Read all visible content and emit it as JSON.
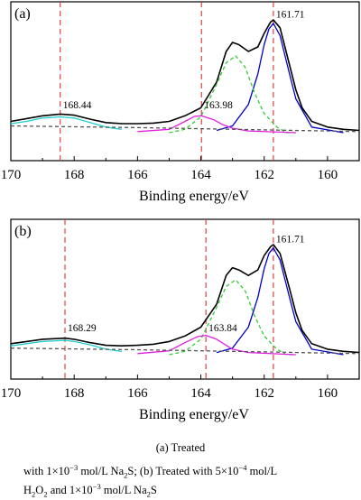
{
  "chart_data": [
    {
      "type": "line",
      "panel_label": "(a)",
      "xlabel": "Binding energy/eV",
      "xlim": [
        170,
        159
      ],
      "xticks": [
        170,
        168,
        166,
        164,
        162,
        160
      ],
      "axis_direction": "reversed",
      "grid": false,
      "reference_lines": [
        168.44,
        163.98,
        161.71
      ],
      "annotations": [
        {
          "text": "168.44",
          "x": 168.44,
          "y": 0.215
        },
        {
          "text": "163.98",
          "x": 163.98,
          "y": 0.215
        },
        {
          "text": "161.71",
          "x": 161.71,
          "y": 1.02
        }
      ],
      "series": [
        {
          "color": "#000000",
          "style": "solid",
          "x": [
            170,
            169.5,
            169,
            168.44,
            168,
            167.5,
            167,
            166.5,
            166,
            165.5,
            165,
            164.5,
            164,
            163.5,
            163.2,
            163,
            162.8,
            162.5,
            162.2,
            162,
            161.8,
            161.71,
            161.5,
            161.2,
            161,
            160.8,
            160.5,
            160,
            159.5,
            159
          ],
          "y": [
            0.1,
            0.125,
            0.15,
            0.165,
            0.155,
            0.12,
            0.09,
            0.08,
            0.08,
            0.085,
            0.1,
            0.15,
            0.22,
            0.45,
            0.72,
            0.8,
            0.78,
            0.72,
            0.76,
            0.88,
            0.98,
            1.0,
            0.93,
            0.6,
            0.38,
            0.22,
            0.1,
            0.05,
            0.03,
            0.02
          ]
        },
        {
          "color": "#0000cc",
          "style": "solid",
          "x": [
            163.5,
            163,
            162.5,
            162.2,
            162,
            161.85,
            161.71,
            161.5,
            161.2,
            161,
            160.5,
            159.5
          ],
          "y": [
            0.02,
            0.06,
            0.25,
            0.52,
            0.78,
            0.92,
            0.97,
            0.86,
            0.52,
            0.3,
            0.05,
            0.0
          ]
        },
        {
          "color": "#33cc33",
          "style": "dashed",
          "x": [
            165,
            164.5,
            164,
            163.5,
            163.2,
            162.9,
            162.6,
            162.3,
            162,
            161.6,
            161.3,
            161
          ],
          "y": [
            0.0,
            0.03,
            0.14,
            0.43,
            0.62,
            0.68,
            0.58,
            0.35,
            0.17,
            0.05,
            0.0,
            0.0
          ]
        },
        {
          "color": "#e020e0",
          "style": "solid",
          "x": [
            166,
            165,
            164.5,
            164.2,
            163.98,
            163.6,
            163.3,
            163,
            162.5,
            161
          ],
          "y": [
            0.01,
            0.03,
            0.1,
            0.145,
            0.15,
            0.115,
            0.07,
            0.04,
            0.015,
            0.0
          ]
        },
        {
          "color": "#22cccc",
          "style": "solid",
          "x": [
            170,
            169.5,
            169,
            168.44,
            168,
            167.5,
            167,
            166.5
          ],
          "y": [
            0.08,
            0.1,
            0.13,
            0.14,
            0.13,
            0.09,
            0.05,
            0.03
          ]
        },
        {
          "color": "#555555",
          "style": "dashed",
          "x": [
            170,
            166,
            164,
            162,
            160,
            159
          ],
          "y": [
            0.06,
            0.045,
            0.035,
            0.025,
            0.015,
            0.01
          ]
        }
      ]
    },
    {
      "type": "line",
      "panel_label": "(b)",
      "xlabel": "Binding energy/eV",
      "xlim": [
        170,
        159
      ],
      "xticks": [
        170,
        168,
        166,
        164,
        162,
        160
      ],
      "axis_direction": "reversed",
      "grid": false,
      "reference_lines": [
        168.29,
        163.84,
        161.71
      ],
      "annotations": [
        {
          "text": "168.29",
          "x": 168.29,
          "y": 0.215
        },
        {
          "text": "163.84",
          "x": 163.84,
          "y": 0.215
        },
        {
          "text": "161.71",
          "x": 161.71,
          "y": 1.02
        }
      ],
      "series": [
        {
          "color": "#000000",
          "style": "solid",
          "x": [
            170,
            169.5,
            169,
            168.29,
            168,
            167.5,
            167,
            166.5,
            166,
            165.5,
            165,
            164.5,
            164,
            163.5,
            163.2,
            163,
            162.8,
            162.5,
            162.2,
            162,
            161.8,
            161.71,
            161.5,
            161.2,
            161,
            160.8,
            160.5,
            160,
            159.5,
            159
          ],
          "y": [
            0.1,
            0.12,
            0.14,
            0.15,
            0.14,
            0.11,
            0.085,
            0.08,
            0.085,
            0.095,
            0.12,
            0.17,
            0.25,
            0.46,
            0.72,
            0.79,
            0.77,
            0.72,
            0.77,
            0.9,
            0.98,
            1.0,
            0.92,
            0.6,
            0.38,
            0.22,
            0.1,
            0.05,
            0.03,
            0.02
          ]
        },
        {
          "color": "#0000cc",
          "style": "solid",
          "x": [
            163.5,
            163,
            162.5,
            162.2,
            162,
            161.85,
            161.71,
            161.5,
            161.2,
            161,
            160.5,
            159.5
          ],
          "y": [
            0.02,
            0.06,
            0.25,
            0.52,
            0.78,
            0.92,
            0.97,
            0.86,
            0.52,
            0.3,
            0.05,
            0.0
          ]
        },
        {
          "color": "#33cc33",
          "style": "dashed",
          "x": [
            165,
            164.5,
            164,
            163.5,
            163.2,
            162.9,
            162.6,
            162.3,
            162,
            161.6,
            161.3,
            161
          ],
          "y": [
            0.0,
            0.03,
            0.14,
            0.43,
            0.62,
            0.68,
            0.58,
            0.35,
            0.17,
            0.05,
            0.0,
            0.0
          ]
        },
        {
          "color": "#e020e0",
          "style": "solid",
          "x": [
            166,
            165,
            164.5,
            164.1,
            163.84,
            163.5,
            163.2,
            163,
            162.5,
            161
          ],
          "y": [
            0.01,
            0.035,
            0.11,
            0.165,
            0.175,
            0.14,
            0.085,
            0.05,
            0.02,
            0.0
          ]
        },
        {
          "color": "#22cccc",
          "style": "solid",
          "x": [
            170,
            169.5,
            169,
            168.29,
            168,
            167.5,
            167,
            166.5
          ],
          "y": [
            0.08,
            0.1,
            0.12,
            0.13,
            0.12,
            0.09,
            0.05,
            0.03
          ]
        },
        {
          "color": "#555555",
          "style": "dashed",
          "x": [
            170,
            166,
            164,
            162,
            160,
            159
          ],
          "y": [
            0.06,
            0.045,
            0.035,
            0.025,
            0.015,
            0.01
          ]
        }
      ]
    }
  ],
  "captions": {
    "line1": "(a) Treated",
    "line2_a": "with 1×10",
    "line2_a_exp": "−3",
    "line2_b": " mol/L Na",
    "line2_b_sub": "2",
    "line2_c": "S; (b) Treated with 5×10",
    "line2_c_exp": "−4",
    "line2_d": " mol/L",
    "line3_a": "H",
    "line3_a_sub": "2",
    "line3_b": "O",
    "line3_b_sub": "2",
    "line3_c": " and 1×10",
    "line3_c_exp": "−3",
    "line3_d": " mol/L Na",
    "line3_d_sub": "2",
    "line3_e": "S"
  }
}
